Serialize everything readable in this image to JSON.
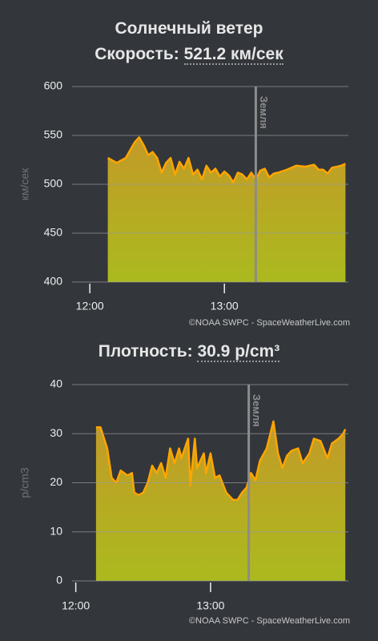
{
  "chart_data": [
    {
      "type": "area",
      "title": "Солнечный ветер",
      "subtitle_label": "Скорость:",
      "subtitle_value": "521.2 км/сек",
      "ylabel": "км/сек",
      "credit": "©NOAA SWPC - SpaceWeatherLive.com",
      "xlim": [
        "11:51",
        "13:56"
      ],
      "xticks": [
        "12:00",
        "13:00"
      ],
      "ylim": [
        400,
        600
      ],
      "yticks": [
        400,
        450,
        500,
        550,
        600
      ],
      "grid": true,
      "annotation": {
        "x": "13:14",
        "label": "Земля"
      },
      "series": [
        {
          "color": "#ffa500",
          "x": [
            "12:08",
            "12:12",
            "12:16",
            "12:20",
            "12:22",
            "12:24",
            "12:26",
            "12:28",
            "12:30",
            "12:32",
            "12:34",
            "12:36",
            "12:38",
            "12:40",
            "12:42",
            "12:44",
            "12:46",
            "12:48",
            "12:50",
            "12:52",
            "12:54",
            "12:56",
            "12:58",
            "13:00",
            "13:02",
            "13:04",
            "13:06",
            "13:08",
            "13:10",
            "13:12",
            "13:14",
            "13:16",
            "13:18",
            "13:20",
            "13:22",
            "13:24",
            "13:28",
            "13:32",
            "13:36",
            "13:40",
            "13:42",
            "13:44",
            "13:46",
            "13:48",
            "13:52",
            "13:54"
          ],
          "values": [
            527,
            522,
            527,
            543,
            548,
            540,
            530,
            533,
            527,
            512,
            522,
            527,
            510,
            523,
            516,
            527,
            510,
            515,
            505,
            519,
            512,
            516,
            508,
            513,
            509,
            502,
            512,
            510,
            505,
            512,
            505,
            514,
            516,
            507,
            511,
            512,
            515,
            519,
            518,
            520,
            515,
            515,
            511,
            517,
            519,
            521
          ]
        }
      ]
    },
    {
      "type": "area",
      "subtitle_label": "Плотность:",
      "subtitle_value": "30.9 p/cm³",
      "ylabel": "p/cm3",
      "credit": "©NOAA SWPC - SpaceWeatherLive.com",
      "xlim": [
        "11:53",
        "14:01"
      ],
      "xticks": [
        "12:00",
        "13:00"
      ],
      "ylim": [
        0,
        40
      ],
      "yticks": [
        0,
        10,
        20,
        30,
        40
      ],
      "grid": true,
      "annotation": {
        "x": "13:17",
        "label": "Земля"
      },
      "series": [
        {
          "color": "#ffa500",
          "x": [
            "12:09",
            "12:11",
            "12:14",
            "12:16",
            "12:18",
            "12:20",
            "12:23",
            "12:25",
            "12:26",
            "12:28",
            "12:30",
            "12:32",
            "12:34",
            "12:36",
            "12:38",
            "12:40",
            "12:42",
            "12:44",
            "12:46",
            "12:47",
            "12:50",
            "12:51",
            "12:53",
            "12:54",
            "12:57",
            "12:58",
            "13:00",
            "13:02",
            "13:04",
            "13:07",
            "13:10",
            "13:12",
            "13:14",
            "13:16",
            "13:18",
            "13:20",
            "13:22",
            "13:25",
            "13:28",
            "13:30",
            "13:32",
            "13:34",
            "13:36",
            "13:39",
            "13:41",
            "13:44",
            "13:46",
            "13:49",
            "13:52",
            "13:54",
            "13:57",
            "13:59",
            "14:00"
          ],
          "values": [
            31.3,
            31.3,
            27,
            21,
            20,
            22.5,
            21.5,
            22,
            18,
            17.5,
            18,
            20,
            23.5,
            22,
            24,
            21,
            27,
            24,
            27,
            25,
            29,
            19.5,
            29,
            23,
            26,
            22,
            26,
            21,
            21.5,
            18,
            16.5,
            16.5,
            18,
            19,
            22,
            20.5,
            24.5,
            27,
            32.5,
            26,
            23,
            25.5,
            26.5,
            27,
            24,
            26,
            29,
            28.5,
            25,
            28,
            29,
            30,
            30.9
          ]
        }
      ]
    }
  ]
}
